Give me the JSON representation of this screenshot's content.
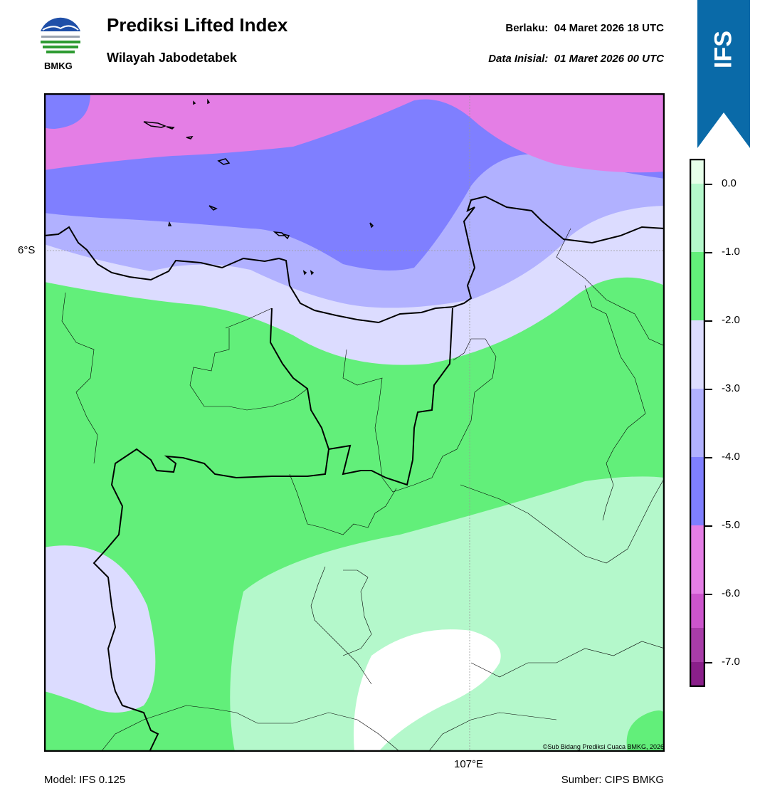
{
  "header": {
    "title": "Prediksi Lifted Index",
    "subtitle": "Wilayah Jabodetabek",
    "valid_label": "Berlaku:",
    "valid_value": "04 Maret 2026 18 UTC",
    "init_label": "Data Inisial:",
    "init_value": "01 Maret 2026 00 UTC"
  },
  "logo": {
    "text": "BMKG",
    "icon": "bmkg-logo"
  },
  "model_tab": {
    "text": "IFS",
    "color": "#0a6aa8"
  },
  "map": {
    "lat_label": "6°S",
    "lon_label": "107°E",
    "copyright": "©Sub Bidang Prediksi Cuaca BMKG, 2026"
  },
  "footer": {
    "model": "Model: IFS 0.125",
    "source": "Sumber: CIPS BMKG"
  },
  "colorbar": {
    "ticks": [
      "0.0",
      "-1.0",
      "-2.0",
      "-3.0",
      "-4.0",
      "-5.0",
      "-6.0",
      "-7.0"
    ],
    "colors": [
      "#e6ffe9",
      "#b4f8cb",
      "#62ef7a",
      "#dcdcff",
      "#b1b1ff",
      "#7f7fff",
      "#e47ee5",
      "#cc55cc",
      "#a83ca8",
      "#8a1f8a"
    ]
  }
}
